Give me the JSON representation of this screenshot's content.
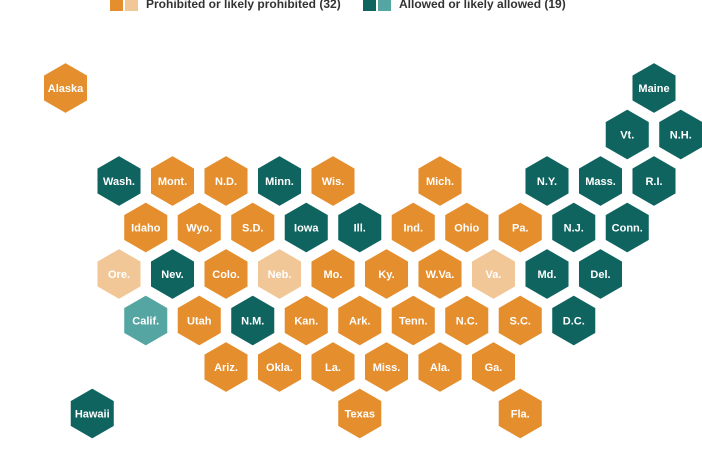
{
  "legend": {
    "prohibited": {
      "label": "Prohibited or likely prohibited (32)",
      "colors": [
        "#E58E2E",
        "#F2C797"
      ]
    },
    "allowed": {
      "label": "Allowed or likely allowed (19)",
      "colors": [
        "#0F6460",
        "#55A6A3"
      ]
    }
  },
  "colors": {
    "prohibited": "#E58E2E",
    "likely_prohibited": "#F2C797",
    "allowed": "#0F6460",
    "likely_allowed": "#55A6A3"
  },
  "states": [
    {
      "label": "Alaska",
      "status": "prohibited",
      "row": 0,
      "col": 0
    },
    {
      "label": "Maine",
      "status": "allowed",
      "row": 0,
      "col": 11
    },
    {
      "label": "Vt.",
      "status": "allowed",
      "row": 1,
      "col": 10
    },
    {
      "label": "N.H.",
      "status": "allowed",
      "row": 1,
      "col": 11
    },
    {
      "label": "Wash.",
      "status": "allowed",
      "row": 2,
      "col": 1
    },
    {
      "label": "Mont.",
      "status": "prohibited",
      "row": 2,
      "col": 2
    },
    {
      "label": "N.D.",
      "status": "prohibited",
      "row": 2,
      "col": 3
    },
    {
      "label": "Minn.",
      "status": "allowed",
      "row": 2,
      "col": 4
    },
    {
      "label": "Wis.",
      "status": "prohibited",
      "row": 2,
      "col": 5
    },
    {
      "label": "Mich.",
      "status": "prohibited",
      "row": 2,
      "col": 7
    },
    {
      "label": "N.Y.",
      "status": "allowed",
      "row": 2,
      "col": 9
    },
    {
      "label": "Mass.",
      "status": "allowed",
      "row": 2,
      "col": 10
    },
    {
      "label": "R.I.",
      "status": "allowed",
      "row": 2,
      "col": 11
    },
    {
      "label": "Idaho",
      "status": "prohibited",
      "row": 3,
      "col": 1
    },
    {
      "label": "Wyo.",
      "status": "prohibited",
      "row": 3,
      "col": 2
    },
    {
      "label": "S.D.",
      "status": "prohibited",
      "row": 3,
      "col": 3
    },
    {
      "label": "Iowa",
      "status": "allowed",
      "row": 3,
      "col": 4
    },
    {
      "label": "Ill.",
      "status": "allowed",
      "row": 3,
      "col": 5
    },
    {
      "label": "Ind.",
      "status": "prohibited",
      "row": 3,
      "col": 6
    },
    {
      "label": "Ohio",
      "status": "prohibited",
      "row": 3,
      "col": 7
    },
    {
      "label": "Pa.",
      "status": "prohibited",
      "row": 3,
      "col": 8
    },
    {
      "label": "N.J.",
      "status": "allowed",
      "row": 3,
      "col": 9
    },
    {
      "label": "Conn.",
      "status": "allowed",
      "row": 3,
      "col": 10
    },
    {
      "label": "Ore.",
      "status": "likely_prohibited",
      "row": 4,
      "col": 1
    },
    {
      "label": "Nev.",
      "status": "allowed",
      "row": 4,
      "col": 2
    },
    {
      "label": "Colo.",
      "status": "prohibited",
      "row": 4,
      "col": 3
    },
    {
      "label": "Neb.",
      "status": "likely_prohibited",
      "row": 4,
      "col": 4
    },
    {
      "label": "Mo.",
      "status": "prohibited",
      "row": 4,
      "col": 5
    },
    {
      "label": "Ky.",
      "status": "prohibited",
      "row": 4,
      "col": 6
    },
    {
      "label": "W.Va.",
      "status": "prohibited",
      "row": 4,
      "col": 7
    },
    {
      "label": "Va.",
      "status": "likely_prohibited",
      "row": 4,
      "col": 8
    },
    {
      "label": "Md.",
      "status": "allowed",
      "row": 4,
      "col": 9
    },
    {
      "label": "Del.",
      "status": "allowed",
      "row": 4,
      "col": 10
    },
    {
      "label": "Calif.",
      "status": "likely_allowed",
      "row": 5,
      "col": 1
    },
    {
      "label": "Utah",
      "status": "prohibited",
      "row": 5,
      "col": 2
    },
    {
      "label": "N.M.",
      "status": "allowed",
      "row": 5,
      "col": 3
    },
    {
      "label": "Kan.",
      "status": "prohibited",
      "row": 5,
      "col": 4
    },
    {
      "label": "Ark.",
      "status": "prohibited",
      "row": 5,
      "col": 5
    },
    {
      "label": "Tenn.",
      "status": "prohibited",
      "row": 5,
      "col": 6
    },
    {
      "label": "N.C.",
      "status": "prohibited",
      "row": 5,
      "col": 7
    },
    {
      "label": "S.C.",
      "status": "prohibited",
      "row": 5,
      "col": 8
    },
    {
      "label": "D.C.",
      "status": "allowed",
      "row": 5,
      "col": 9
    },
    {
      "label": "Ariz.",
      "status": "prohibited",
      "row": 6,
      "col": 3
    },
    {
      "label": "Okla.",
      "status": "prohibited",
      "row": 6,
      "col": 4
    },
    {
      "label": "La.",
      "status": "prohibited",
      "row": 6,
      "col": 5
    },
    {
      "label": "Miss.",
      "status": "prohibited",
      "row": 6,
      "col": 6
    },
    {
      "label": "Ala.",
      "status": "prohibited",
      "row": 6,
      "col": 7
    },
    {
      "label": "Ga.",
      "status": "prohibited",
      "row": 6,
      "col": 8
    },
    {
      "label": "Texas",
      "status": "prohibited",
      "row": 7,
      "col": 5
    },
    {
      "label": "Fla.",
      "status": "prohibited",
      "row": 7,
      "col": 8
    },
    {
      "label": "Hawaii",
      "status": "allowed",
      "row": 7,
      "col": 0
    }
  ]
}
